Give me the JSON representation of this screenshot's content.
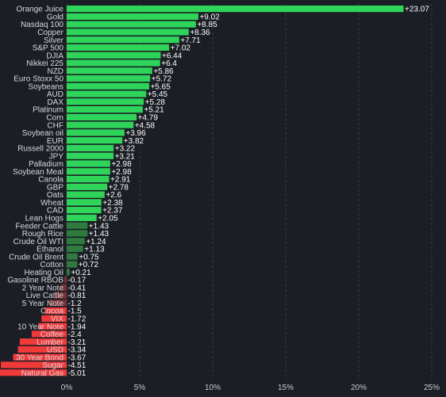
{
  "chart_data": {
    "type": "bar",
    "orientation": "horizontal",
    "title": "",
    "xlabel": "",
    "ylabel": "",
    "xlim": [
      -0.4,
      25
    ],
    "x_ticks": [
      0,
      5,
      10,
      15,
      20,
      25
    ],
    "x_tick_labels": [
      "0%",
      "5%",
      "10%",
      "15%",
      "20%",
      "25%"
    ],
    "grid": "vertical dashed",
    "categories": [
      "Orange Juice",
      "Gold",
      "Nasdaq 100",
      "Copper",
      "Silver",
      "S&P 500",
      "DJIA",
      "Nikkei 225",
      "NZD",
      "Euro Stoxx 50",
      "Soybeans",
      "AUD",
      "DAX",
      "Platinum",
      "Corn",
      "CHF",
      "Soybean oil",
      "EUR",
      "Russell 2000",
      "JPY",
      "Palladium",
      "Soybean Meal",
      "Canola",
      "GBP",
      "Oats",
      "Wheat",
      "CAD",
      "Lean Hogs",
      "Feeder Cattle",
      "Rough Rice",
      "Crude Oil WTI",
      "Ethanol",
      "Crude Oil Brent",
      "Cotton",
      "Heating Oil",
      "Gasoline RBOB",
      "2 Year Note",
      "Live Cattle",
      "5 Year Note",
      "Cocoa",
      "VIX",
      "10 Year Note",
      "Coffee",
      "Lumber",
      "USD",
      "30 Year Bond",
      "Sugar",
      "Natural Gas"
    ],
    "values": [
      23.07,
      9.02,
      8.85,
      8.36,
      7.71,
      7.02,
      6.44,
      6.4,
      5.86,
      5.72,
      5.65,
      5.45,
      5.28,
      5.21,
      4.79,
      4.58,
      3.96,
      3.82,
      3.22,
      3.21,
      2.98,
      2.98,
      2.91,
      2.78,
      2.6,
      2.38,
      2.37,
      2.05,
      1.43,
      1.43,
      1.24,
      1.13,
      0.75,
      0.72,
      0.21,
      -0.17,
      -0.41,
      -0.81,
      -1.2,
      -1.5,
      -1.72,
      -1.94,
      -2.4,
      -3.21,
      -3.34,
      -3.67,
      -4.51,
      -5.01
    ],
    "value_labels": [
      "+23.07",
      "+9.02",
      "+8.85",
      "+8.36",
      "+7.71",
      "+7.02",
      "+6.44",
      "+6.4",
      "+5.86",
      "+5.72",
      "+5.65",
      "+5.45",
      "+5.28",
      "+5.21",
      "+4.79",
      "+4.58",
      "+3.96",
      "+3.82",
      "+3.22",
      "+3.21",
      "+2.98",
      "+2.98",
      "+2.91",
      "+2.78",
      "+2.6",
      "+2.38",
      "+2.37",
      "+2.05",
      "+1.43",
      "+1.43",
      "+1.24",
      "+1.13",
      "+0.75",
      "+0.72",
      "+0.21",
      "-0.17",
      "-0.41",
      "-0.81",
      "-1.2",
      "-1.5",
      "-1.72",
      "-1.94",
      "-2.4",
      "-3.21",
      "-3.34",
      "-3.67",
      "-4.51",
      "-5.01"
    ],
    "colors": {
      "positive_strong": "#2fd45a",
      "positive_weak": "#2f7a3e",
      "negative_weak": "#7a3036",
      "negative_strong": "#f03a3a",
      "background": "#1b1e24",
      "grid": "#3a3e46"
    }
  }
}
